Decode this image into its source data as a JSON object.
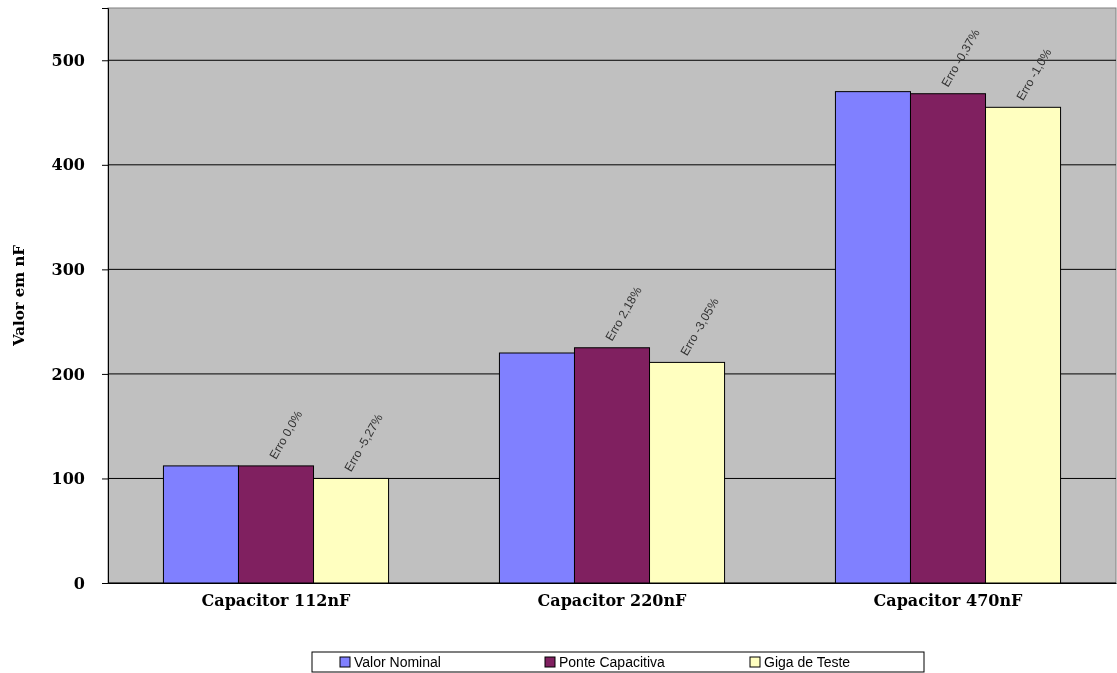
{
  "chart_data": {
    "type": "bar",
    "ylabel": "Valor em nF",
    "categories": [
      "Capacitor 112nF",
      "Capacitor 220nF",
      "Capacitor 470nF"
    ],
    "series": [
      {
        "name": "Valor Nominal",
        "color": "#8080ff",
        "values": [
          112,
          220,
          470
        ]
      },
      {
        "name": "Ponte Capacitiva",
        "color": "#802060",
        "values": [
          112,
          225,
          468
        ]
      },
      {
        "name": "Giga de Teste",
        "color": "#ffffc0",
        "values": [
          100,
          211,
          455
        ]
      }
    ],
    "ylim": [
      0,
      550
    ],
    "yticks": [
      0,
      100,
      200,
      300,
      400,
      500
    ],
    "grid": "y",
    "legend": "bottom",
    "annotations": [
      "Erro 0,0%",
      "Erro -5,27%",
      "Erro 2,18%",
      "Erro -3,05%",
      "Erro -0,37%",
      "Erro -1,0%"
    ]
  }
}
